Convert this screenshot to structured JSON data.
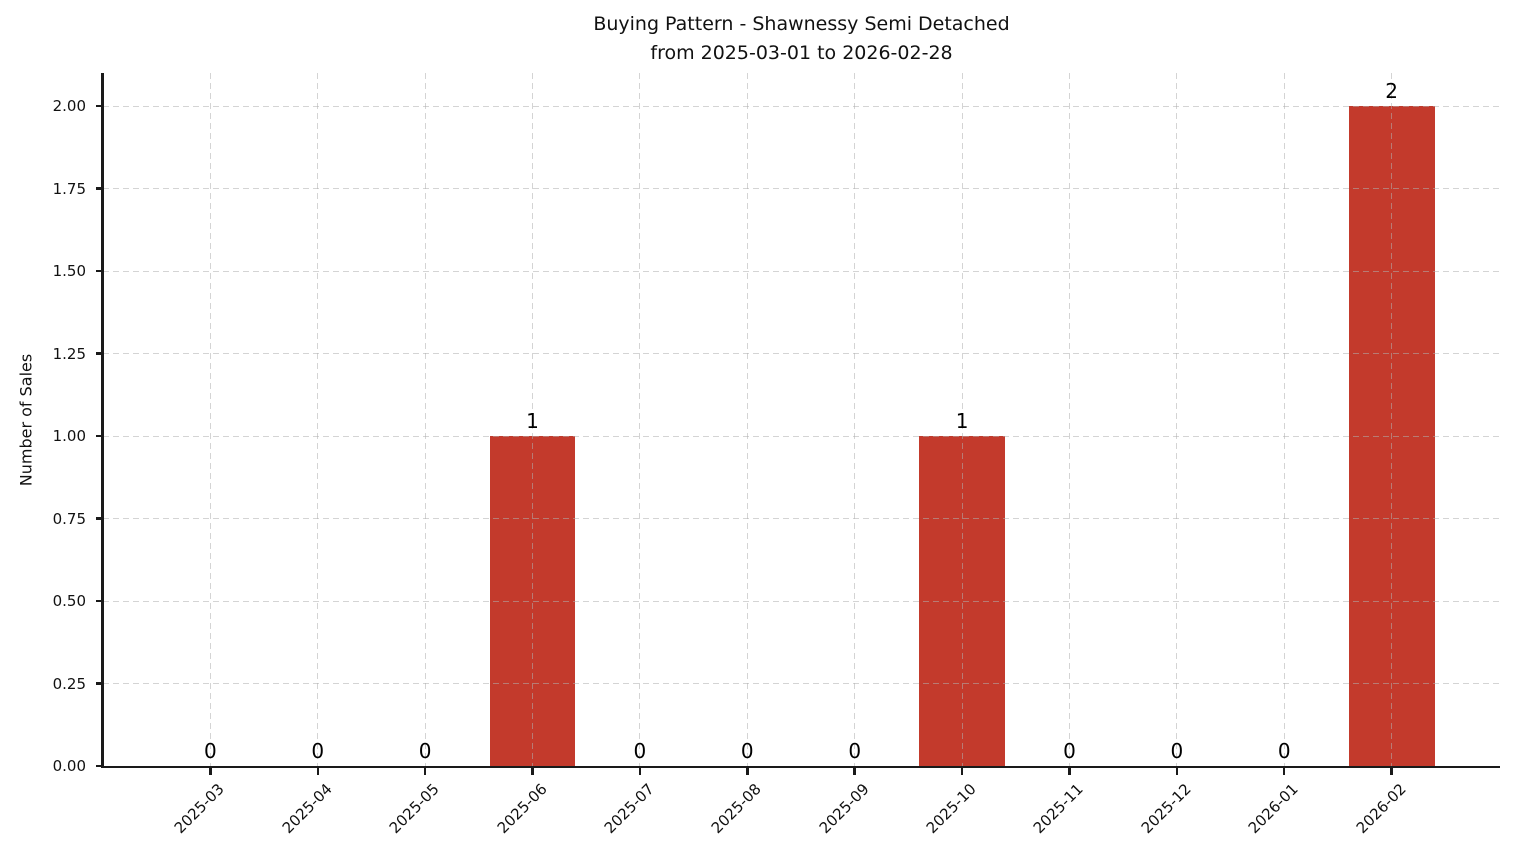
{
  "chart_data": {
    "type": "bar",
    "title": "Buying Pattern - Shawnessy Semi Detached",
    "subtitle": "from 2025-03-01 to 2026-02-28",
    "xlabel": "",
    "ylabel": "Number of Sales",
    "categories": [
      "2025-03",
      "2025-04",
      "2025-05",
      "2025-06",
      "2025-07",
      "2025-08",
      "2025-09",
      "2025-10",
      "2025-11",
      "2025-12",
      "2026-01",
      "2026-02"
    ],
    "values": [
      0,
      0,
      0,
      1,
      0,
      0,
      0,
      1,
      0,
      0,
      0,
      2
    ],
    "bar_value_labels": [
      "0",
      "0",
      "0",
      "1",
      "0",
      "0",
      "0",
      "1",
      "0",
      "0",
      "0",
      "2"
    ],
    "ytick_labels": [
      "0.00",
      "0.25",
      "0.50",
      "0.75",
      "1.00",
      "1.25",
      "1.50",
      "1.75",
      "2.00"
    ],
    "ylim": [
      0,
      2.1
    ],
    "grid": {
      "visible": true,
      "style": "dashed",
      "color": "#b0b0b0"
    },
    "legend": "none",
    "colors": {
      "bar": "#c33a2c",
      "text": "#111111",
      "spine": "#1a1a1a",
      "background": "#ffffff"
    }
  }
}
